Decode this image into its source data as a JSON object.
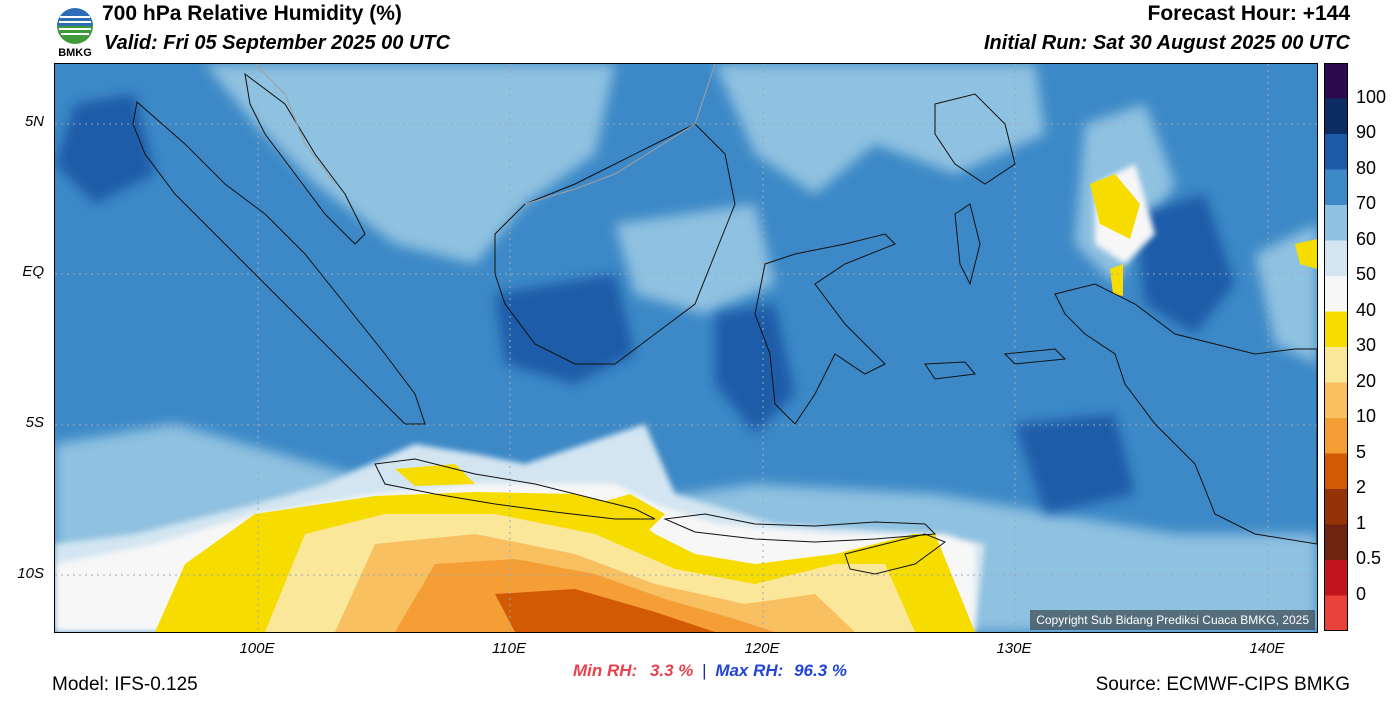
{
  "header": {
    "title": "700 hPa Relative Humidity (%)",
    "valid": "Valid: Fri 05 September 2025 00 UTC",
    "forecast_hour": "Forecast Hour: +144",
    "initial_run": "Initial Run: Sat 30 August 2025 00 UTC"
  },
  "logo": {
    "text": "BMKG",
    "icon": "bmkg-logo-icon"
  },
  "map": {
    "lat_labels": [
      "5N",
      "EQ",
      "5S",
      "10S"
    ],
    "lon_labels": [
      "100E",
      "110E",
      "120E",
      "130E",
      "140E"
    ],
    "copyright": "Copyright Sub Bidang Prediksi Cuaca BMKG, 2025",
    "colors": {
      "land_border": "#111111",
      "other_border": "#a0a0a0"
    }
  },
  "colorbar": {
    "labels": [
      "100",
      "90",
      "80",
      "70",
      "60",
      "50",
      "40",
      "30",
      "20",
      "10",
      "5",
      "2",
      "1",
      "0.5",
      "0"
    ],
    "colors": [
      "#2d0a4e",
      "#0c2d63",
      "#1d5ba8",
      "#3d89c7",
      "#8fc1e0",
      "#d3e5f1",
      "#f7f7f7",
      "#f7dc00",
      "#fbe79a",
      "#f8c060",
      "#f59e36",
      "#d35a05",
      "#963208",
      "#6e2410",
      "#c1141c",
      "#e8423a"
    ]
  },
  "stats": {
    "min_label": "Min RH:",
    "min_value": "3.3 %",
    "separator": "|",
    "max_label": "Max RH:",
    "max_value": "96.3 %"
  },
  "footer": {
    "model": "Model: IFS-0.125",
    "source": "Source: ECMWF-CIPS BMKG"
  }
}
